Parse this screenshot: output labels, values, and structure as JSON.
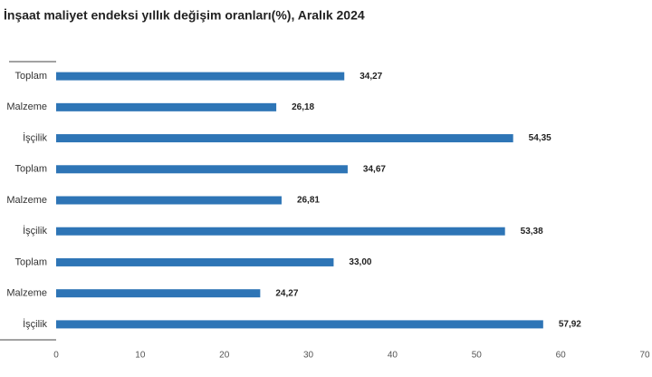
{
  "chart_data": {
    "type": "bar",
    "orientation": "horizontal",
    "title": "İnşaat maliyet endeksi yıllık değişim oranları(%), Aralık 2024",
    "categories": [
      "Toplam",
      "Malzeme",
      "İşçilik",
      "Toplam",
      "Malzeme",
      "İşçilik",
      "Toplam",
      "Malzeme",
      "İşçilik"
    ],
    "values": [
      34.27,
      26.18,
      54.35,
      34.67,
      26.81,
      53.38,
      33.0,
      24.27,
      57.92
    ],
    "value_labels": [
      "34,27",
      "26,18",
      "54,35",
      "34,67",
      "26,81",
      "53,38",
      "33,00",
      "24,27",
      "57,92"
    ],
    "color": "#2e75b6",
    "xlim": [
      0,
      70
    ],
    "xticks": [
      0,
      10,
      20,
      30,
      40,
      50,
      60,
      70
    ],
    "grid": false
  }
}
